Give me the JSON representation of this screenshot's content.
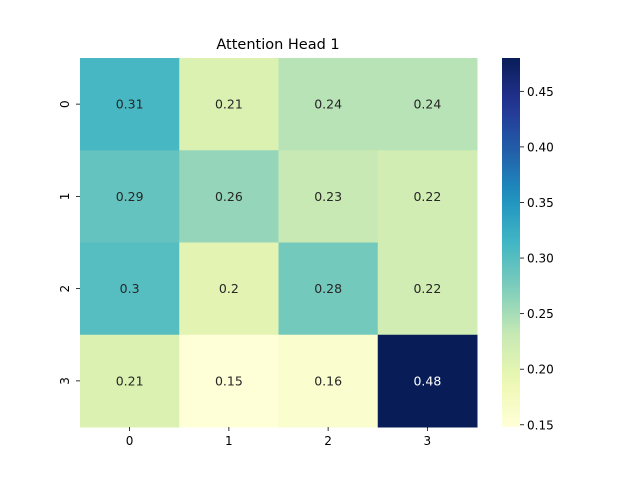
{
  "chart_data": {
    "type": "heatmap",
    "title": "Attention Head 1",
    "xlabel": "",
    "ylabel": "",
    "x_tick_labels": [
      "0",
      "1",
      "2",
      "3"
    ],
    "y_tick_labels": [
      "0",
      "1",
      "2",
      "3"
    ],
    "values": [
      [
        0.31,
        0.21,
        0.24,
        0.24
      ],
      [
        0.29,
        0.26,
        0.23,
        0.22
      ],
      [
        0.3,
        0.2,
        0.28,
        0.22
      ],
      [
        0.21,
        0.15,
        0.16,
        0.48
      ]
    ],
    "cell_labels": [
      [
        "0.31",
        "0.21",
        "0.24",
        "0.24"
      ],
      [
        "0.29",
        "0.26",
        "0.23",
        "0.22"
      ],
      [
        "0.3",
        "0.2",
        "0.28",
        "0.22"
      ],
      [
        "0.21",
        "0.15",
        "0.16",
        "0.48"
      ]
    ],
    "colormap": "YlGnBu",
    "colorbar": {
      "range": [
        0.148,
        0.48
      ],
      "ticks": [
        0.15,
        0.2,
        0.25,
        0.3,
        0.35,
        0.4,
        0.45
      ],
      "tick_labels": [
        "0.15",
        "0.20",
        "0.25",
        "0.30",
        "0.35",
        "0.40",
        "0.45"
      ]
    },
    "grid": false,
    "legend": "colorbar-right"
  }
}
